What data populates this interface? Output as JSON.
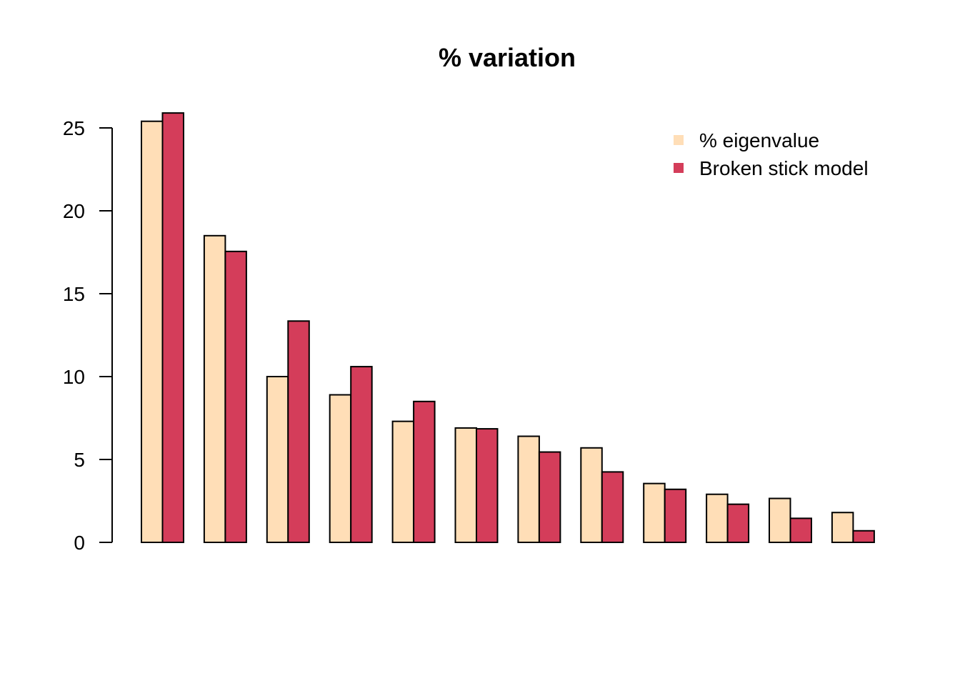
{
  "chart_data": {
    "type": "bar",
    "title": "% variation",
    "xlabel": "",
    "ylabel": "",
    "ylim": [
      0,
      26
    ],
    "yticks": [
      0,
      5,
      10,
      15,
      20,
      25
    ],
    "grid": false,
    "legend_position": "top-right",
    "categories": [
      "",
      "",
      "",
      "",
      "",
      "",
      "",
      "",
      "",
      "",
      "",
      ""
    ],
    "series": [
      {
        "name": "% eigenvalue",
        "color": "#FFDEB7",
        "values": [
          25.4,
          18.5,
          10.0,
          8.9,
          7.3,
          6.9,
          6.4,
          5.7,
          3.55,
          2.9,
          2.65,
          1.8
        ]
      },
      {
        "name": "Broken stick model",
        "color": "#D43D5A",
        "values": [
          25.9,
          17.55,
          13.35,
          10.6,
          8.5,
          6.85,
          5.45,
          4.25,
          3.2,
          2.3,
          1.45,
          0.7
        ]
      }
    ]
  }
}
